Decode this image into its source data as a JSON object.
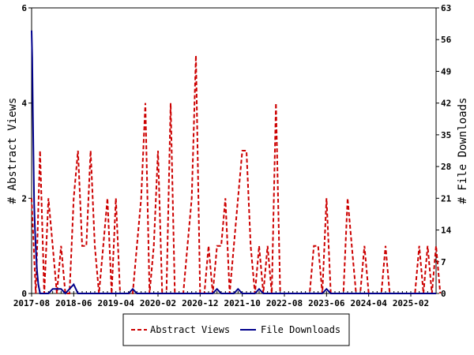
{
  "chart_data": {
    "type": "line",
    "title": "",
    "ylabel": "# Abstract Views",
    "y2label": "# File Downloads",
    "ylim": [
      0,
      6
    ],
    "y2lim": [
      0,
      63
    ],
    "y_ticks": [
      "0",
      "2",
      "4",
      "6"
    ],
    "y2_ticks": [
      "0",
      "7",
      "14",
      "21",
      "28",
      "35",
      "42",
      "49",
      "56",
      "63"
    ],
    "x_ticks": [
      "2017-08",
      "2018-06",
      "2019-04",
      "2020-02",
      "2020-12",
      "2021-10",
      "2022-08",
      "2023-06",
      "2024-04",
      "2025-02"
    ],
    "x_start": "2017-08",
    "x_months": 96,
    "legend_position": "bottom",
    "series": [
      {
        "name": "Abstract Views",
        "axis": "left",
        "color": "#cc0000",
        "style": "dashed",
        "values": [
          2,
          0,
          3,
          0,
          2,
          1,
          0,
          1,
          0,
          0,
          2,
          3,
          1,
          1,
          3,
          1,
          0,
          1,
          2,
          0,
          2,
          0,
          0,
          0,
          0,
          1,
          2,
          4,
          0,
          1,
          3,
          0,
          0,
          4,
          0,
          0,
          0,
          1,
          2,
          5,
          0,
          0,
          1,
          0,
          1,
          1,
          2,
          0,
          1,
          2,
          3,
          3,
          1,
          0,
          1,
          0,
          1,
          0,
          4,
          0,
          0,
          0,
          0,
          0,
          0,
          0,
          0,
          1,
          1,
          0,
          2,
          0,
          0,
          0,
          0,
          2,
          1,
          0,
          0,
          1,
          0,
          0,
          0,
          0,
          1,
          0,
          0,
          0,
          0,
          0,
          0,
          0,
          1,
          0,
          1,
          0,
          1,
          0
        ]
      },
      {
        "name": "File Downloads",
        "axis": "right",
        "color": "#00008b",
        "style": "solid",
        "values": [
          [
            0.0,
            58
          ],
          [
            0.15,
            52
          ],
          [
            0.3,
            40
          ],
          [
            0.45,
            30
          ],
          [
            0.6,
            20
          ],
          [
            0.8,
            14
          ],
          [
            1.0,
            10
          ],
          [
            1.3,
            5
          ],
          [
            1.6,
            2
          ],
          [
            2.0,
            0
          ],
          [
            3,
            0
          ],
          [
            4,
            0
          ],
          [
            5,
            1
          ],
          [
            6,
            1
          ],
          [
            7,
            1
          ],
          [
            8,
            0
          ],
          [
            9,
            1
          ],
          [
            10,
            2
          ],
          [
            11,
            0
          ],
          [
            12,
            0
          ],
          [
            13,
            0
          ],
          [
            14,
            0
          ],
          [
            15,
            0
          ],
          [
            16,
            0
          ],
          [
            17,
            0
          ],
          [
            18,
            0
          ],
          [
            19,
            0
          ],
          [
            20,
            0
          ],
          [
            21,
            0
          ],
          [
            22,
            0
          ],
          [
            23,
            0
          ],
          [
            24,
            1
          ],
          [
            25,
            0
          ],
          [
            26,
            0
          ],
          [
            27,
            0
          ],
          [
            28,
            0
          ],
          [
            29,
            0
          ],
          [
            30,
            0
          ],
          [
            31,
            0
          ],
          [
            32,
            0
          ],
          [
            33,
            0
          ],
          [
            34,
            0
          ],
          [
            35,
            0
          ],
          [
            36,
            0
          ],
          [
            37,
            0
          ],
          [
            38,
            0
          ],
          [
            39,
            0
          ],
          [
            40,
            0
          ],
          [
            41,
            0
          ],
          [
            42,
            0
          ],
          [
            43,
            0
          ],
          [
            44,
            1
          ],
          [
            45,
            0
          ],
          [
            46,
            0
          ],
          [
            47,
            0
          ],
          [
            48,
            0
          ],
          [
            49,
            1
          ],
          [
            50,
            0
          ],
          [
            51,
            0
          ],
          [
            52,
            0
          ],
          [
            53,
            0
          ],
          [
            54,
            1
          ],
          [
            55,
            0
          ],
          [
            56,
            0
          ],
          [
            57,
            0
          ],
          [
            58,
            0
          ],
          [
            59,
            0
          ],
          [
            60,
            0
          ],
          [
            61,
            0
          ],
          [
            62,
            0
          ],
          [
            63,
            0
          ],
          [
            64,
            0
          ],
          [
            65,
            0
          ],
          [
            66,
            0
          ],
          [
            67,
            0
          ],
          [
            68,
            0
          ],
          [
            69,
            0
          ],
          [
            70,
            1
          ],
          [
            71,
            0
          ],
          [
            72,
            0
          ],
          [
            73,
            0
          ],
          [
            74,
            0
          ],
          [
            75,
            0
          ],
          [
            76,
            0
          ],
          [
            77,
            0
          ],
          [
            78,
            0
          ],
          [
            79,
            0
          ],
          [
            80,
            0
          ],
          [
            81,
            0
          ],
          [
            82,
            0
          ],
          [
            83,
            0
          ],
          [
            84,
            0
          ],
          [
            85,
            0
          ],
          [
            86,
            0
          ],
          [
            87,
            0
          ],
          [
            88,
            0
          ],
          [
            89,
            0
          ],
          [
            90,
            0
          ],
          [
            91,
            0
          ],
          [
            92,
            0
          ],
          [
            93,
            0
          ],
          [
            94,
            0
          ],
          [
            95,
            0
          ],
          [
            96,
            0
          ]
        ]
      }
    ]
  }
}
